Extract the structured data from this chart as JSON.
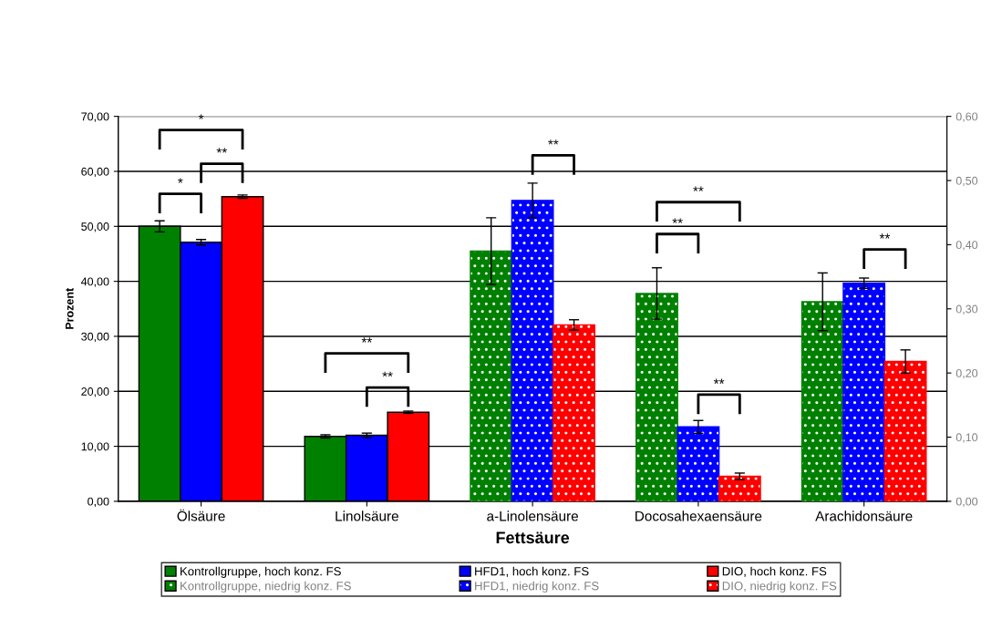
{
  "chart_data": {
    "type": "bar",
    "xlabel": "Fettsäure",
    "ylabel": "Prozent",
    "categories": [
      "Ölsäure",
      "Linolsäure",
      "a-Linolensäure",
      "Docosahexaensäure",
      "Arachidonsäure"
    ],
    "series": [
      {
        "name": "Kontrollgruppe, hoch konz. FS",
        "color": "#008000",
        "values": [
          50.0,
          11.8,
          null,
          null,
          null
        ],
        "errors": [
          1.0,
          0.3,
          null,
          null,
          null
        ]
      },
      {
        "name": "HFD1, hoch konz. FS",
        "color": "#0000ff",
        "values": [
          47.1,
          12.0,
          null,
          null,
          null
        ],
        "errors": [
          0.5,
          0.4,
          null,
          null,
          null
        ]
      },
      {
        "name": "DIO, hoch konz. FS",
        "color": "#ff0000",
        "values": [
          55.4,
          16.2,
          null,
          null,
          null
        ],
        "errors": [
          0.3,
          0.2,
          null,
          null,
          null
        ]
      },
      {
        "name": "Kontrollgruppe, niedrig konz. FS",
        "color": "#008000",
        "axis": "y2",
        "values": [
          null,
          null,
          0.39,
          0.324,
          0.311
        ],
        "errors": [
          null,
          null,
          0.052,
          0.04,
          0.045
        ]
      },
      {
        "name": "HFD1, niedrig konz. FS",
        "color": "#0000ff",
        "axis": "y2",
        "values": [
          null,
          null,
          0.469,
          0.116,
          0.34
        ],
        "errors": [
          null,
          null,
          0.027,
          0.01,
          0.008
        ]
      },
      {
        "name": "DIO, niedrig konz. FS",
        "color": "#ff0000",
        "axis": "y2",
        "values": [
          null,
          null,
          0.275,
          0.039,
          0.218
        ],
        "errors": [
          null,
          null,
          0.008,
          0.005,
          0.018
        ]
      }
    ],
    "ylim": [
      0,
      70
    ],
    "yticks": [
      {
        "value": 0,
        "label": "0,00"
      },
      {
        "value": 10,
        "label": "10,00"
      },
      {
        "value": 20,
        "label": "20,00"
      },
      {
        "value": 30,
        "label": "30,00"
      },
      {
        "value": 40,
        "label": "40,00"
      },
      {
        "value": 50,
        "label": "50,00"
      },
      {
        "value": 60,
        "label": "60,00"
      },
      {
        "value": 70,
        "label": "70,00"
      }
    ],
    "y2lim": [
      0,
      0.6
    ],
    "y2ticks": [
      {
        "value": 0,
        "label": "0,00"
      },
      {
        "value": 0.1,
        "label": "0,10"
      },
      {
        "value": 0.2,
        "label": "0,20"
      },
      {
        "value": 0.3,
        "label": "0,30"
      },
      {
        "value": 0.4,
        "label": "0,40"
      },
      {
        "value": 0.5,
        "label": "0,50"
      },
      {
        "value": 0.6,
        "label": "0,60"
      }
    ],
    "grid": "y",
    "legend": "bottom",
    "annotations": [
      "*",
      "**",
      "*",
      "**",
      "**",
      "**",
      "**",
      "**",
      "**",
      "**"
    ]
  }
}
